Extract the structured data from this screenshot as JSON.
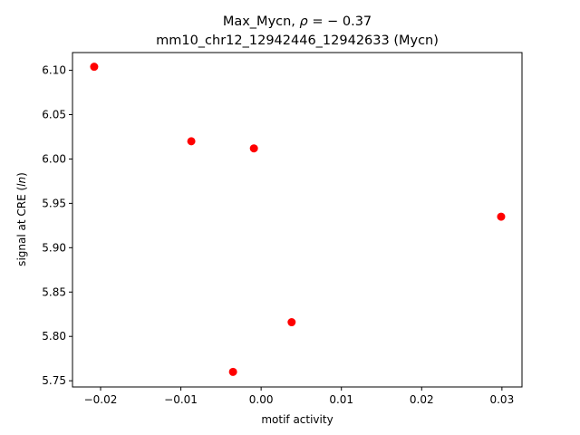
{
  "chart_data": {
    "type": "scatter",
    "title_line1": "Max_Mycn, ρ = − 0.37",
    "title_line2": "mm10_chr12_12942446_12942633 (Mycn)",
    "xlabel": "motif activity",
    "ylabel": "signal at CRE (ln)",
    "xlim": [
      -0.0235,
      0.0325
    ],
    "ylim": [
      5.743,
      6.12
    ],
    "xticks": [
      -0.02,
      -0.01,
      0.0,
      0.01,
      0.02,
      0.03
    ],
    "xtick_labels": [
      "−0.02",
      "−0.01",
      "0.00",
      "0.01",
      "0.02",
      "0.03"
    ],
    "yticks": [
      5.75,
      5.8,
      5.85,
      5.9,
      5.95,
      6.0,
      6.05,
      6.1
    ],
    "ytick_labels": [
      "5.75",
      "5.80",
      "5.85",
      "5.90",
      "5.95",
      "6.00",
      "6.05",
      "6.10"
    ],
    "grid": false,
    "marker_color": "#ff0000",
    "points": [
      {
        "x": -0.0208,
        "y": 6.104
      },
      {
        "x": -0.0087,
        "y": 6.02
      },
      {
        "x": -0.0009,
        "y": 6.012
      },
      {
        "x": -0.0035,
        "y": 5.76
      },
      {
        "x": 0.0038,
        "y": 5.816
      },
      {
        "x": 0.0299,
        "y": 5.935
      }
    ]
  }
}
